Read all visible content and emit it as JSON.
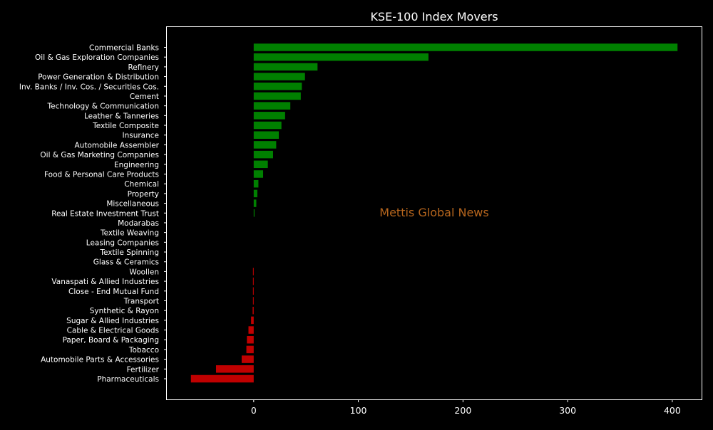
{
  "chart_data": {
    "type": "bar",
    "orientation": "horizontal",
    "title": "KSE-100 Index Movers",
    "watermark": "Mettis Global News",
    "xlabel": "",
    "ylabel": "",
    "xlim": [
      -83,
      428
    ],
    "xticks": [
      0,
      100,
      200,
      300,
      400
    ],
    "grid": false,
    "legend": "none",
    "colors": {
      "background": "#000000",
      "positive": "#008000",
      "negative": "#c00000",
      "text": "#ffffff",
      "watermark": "#b5651d"
    },
    "categories": [
      "Commercial Banks",
      "Oil & Gas Exploration Companies",
      "Refinery",
      "Power Generation & Distribution",
      "Inv. Banks / Inv. Cos. / Securities Cos.",
      "Cement",
      "Technology & Communication",
      "Leather & Tanneries",
      "Textile Composite",
      "Insurance",
      "Automobile Assembler",
      "Oil & Gas Marketing Companies",
      "Engineering",
      "Food & Personal Care Products",
      "Chemical",
      "Property",
      "Miscellaneous",
      "Real Estate Investment Trust",
      "Modarabas",
      "Textile Weaving",
      "Leasing Companies",
      "Textile Spinning",
      "Glass & Ceramics",
      "Woollen",
      "Vanaspati & Allied Industries",
      "Close - End Mutual Fund",
      "Transport",
      "Synthetic & Rayon",
      "Sugar & Allied Industries",
      "Cable & Electrical Goods",
      "Paper, Board & Packaging",
      "Tobacco",
      "Automobile Parts & Accessories",
      "Fertilizer",
      "Pharmaceuticals"
    ],
    "values": [
      405,
      167,
      61,
      49,
      46,
      45,
      35,
      30,
      26.5,
      24,
      21.5,
      18.5,
      13.5,
      9,
      4.5,
      3.5,
      2.5,
      0.8,
      0,
      0,
      0,
      0,
      0,
      -0.7,
      -0.7,
      -0.7,
      -0.7,
      -1,
      -2.5,
      -5,
      -6.5,
      -7,
      -11.5,
      -36,
      -60
    ]
  }
}
